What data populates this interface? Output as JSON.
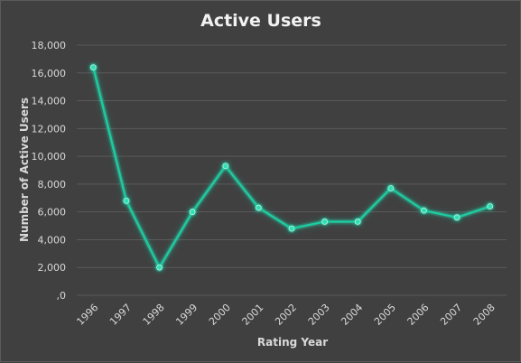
{
  "chart_data": {
    "type": "line",
    "title": "Active Users",
    "xlabel": "Rating Year",
    "ylabel": "Number of Active Users",
    "categories": [
      "1996",
      "1997",
      "1998",
      "1999",
      "2000",
      "2001",
      "2002",
      "2003",
      "2004",
      "2005",
      "2006",
      "2007",
      "2008"
    ],
    "series": [
      {
        "values": [
          16400,
          6800,
          2000,
          6000,
          9300,
          6300,
          4800,
          5300,
          5300,
          7700,
          6100,
          5600,
          6400
        ]
      }
    ],
    "ylim": [
      0,
      18000
    ],
    "yticks": [
      "18,000",
      "16,000",
      "14,000",
      "12,000",
      "10,000",
      "8,000",
      "6,000",
      "4,000",
      "2,000",
      ",0"
    ],
    "grid": true,
    "legend": "none",
    "colors": {
      "background": "#404040",
      "line": "#1fc9a0",
      "marker": "#2ee0b4",
      "grid": "#5a5a5a",
      "text": "#d9d9d9"
    }
  }
}
